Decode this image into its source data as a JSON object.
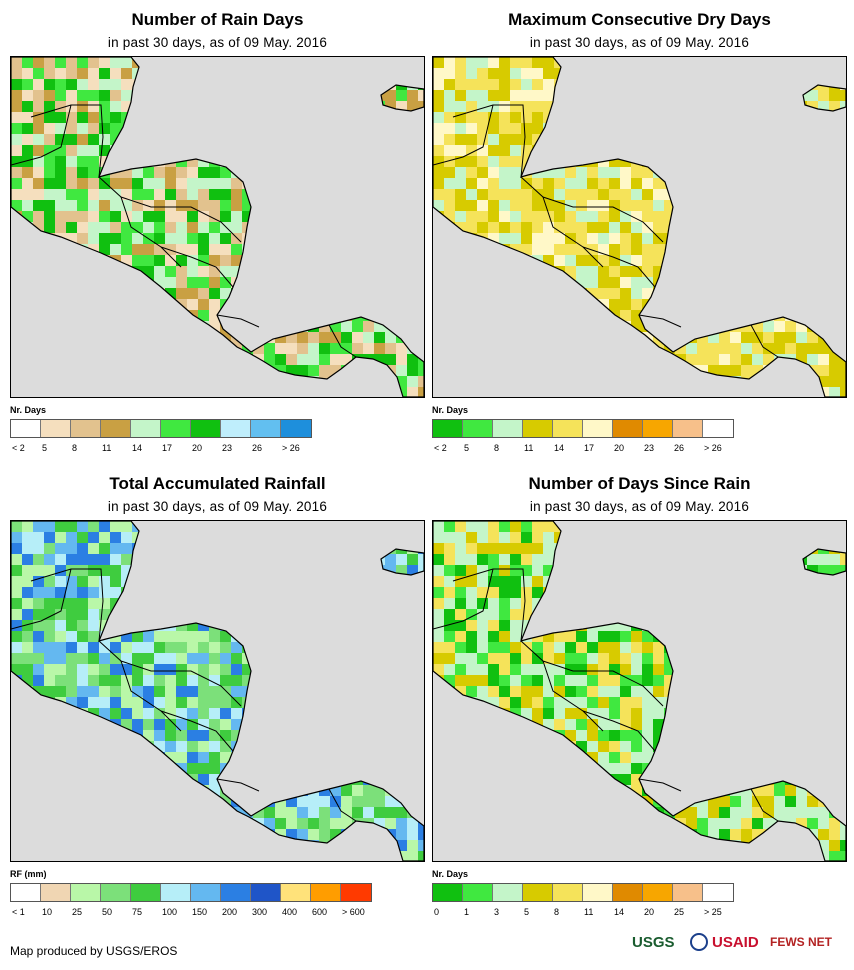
{
  "panels": [
    {
      "title": "Number of Rain Days",
      "subtitle": "in past 30 days, as of 09 May. 2016",
      "legend_title": "Nr. Days",
      "legend_colors": [
        "#ffffff",
        "#f5dfbe",
        "#e2c28e",
        "#c9a043",
        "#c4f5c9",
        "#40e840",
        "#10c010",
        "#bfeefc",
        "#62bff0",
        "#1e8fdc"
      ],
      "legend_labels": [
        "< 2",
        "5",
        "8",
        "11",
        "14",
        "17",
        "20",
        "23",
        "26",
        "> 26"
      ],
      "dominant_classes": [
        1,
        2,
        3,
        4,
        5,
        6
      ]
    },
    {
      "title": "Maximum Consecutive Dry Days",
      "subtitle": "in past 30 days, as of 09 May. 2016",
      "legend_title": "Nr. Days",
      "legend_colors": [
        "#10c010",
        "#40e840",
        "#c4f5c9",
        "#d7cb00",
        "#f5e35a",
        "#fff8c8",
        "#e08a00",
        "#f7a600",
        "#f7c08a",
        "#ffffff"
      ],
      "legend_labels": [
        "< 2",
        "5",
        "8",
        "11",
        "14",
        "17",
        "20",
        "23",
        "26",
        "> 26"
      ],
      "dominant_classes": [
        2,
        3,
        3,
        4,
        4,
        5
      ]
    },
    {
      "title": "Total Accumulated Rainfall",
      "subtitle": "in past 30 days, as of 09 May. 2016",
      "legend_title": "RF (mm)",
      "legend_colors": [
        "#ffffff",
        "#f0d6b3",
        "#b9f7a8",
        "#7ce07a",
        "#3fcc3f",
        "#b6eef8",
        "#64b8f0",
        "#2b7fe3",
        "#1f55c8",
        "#ffe27a",
        "#ff9d00",
        "#ff3a00"
      ],
      "legend_labels": [
        "< 1",
        "10",
        "25",
        "50",
        "75",
        "100",
        "150",
        "200",
        "300",
        "400",
        "600",
        "> 600"
      ],
      "dominant_classes": [
        2,
        3,
        4,
        5,
        6,
        7
      ]
    },
    {
      "title": "Number of Days Since Rain",
      "subtitle": "in past 30 days, as of 09 May. 2016",
      "legend_title": "Nr. Days",
      "legend_colors": [
        "#10c010",
        "#40e840",
        "#c4f5c9",
        "#d7cb00",
        "#f5e35a",
        "#fff8c8",
        "#e08a00",
        "#f7a600",
        "#f7c08a",
        "#ffffff"
      ],
      "legend_labels": [
        "0",
        "1",
        "3",
        "5",
        "8",
        "11",
        "14",
        "20",
        "25",
        "> 25"
      ],
      "dominant_classes": [
        0,
        1,
        2,
        2,
        3,
        4
      ]
    }
  ],
  "footer": {
    "credit": "Map produced by USGS/EROS",
    "logo_usgs": "USGS",
    "logo_usaid": "USAID",
    "logo_fews": "FEWS NET"
  }
}
